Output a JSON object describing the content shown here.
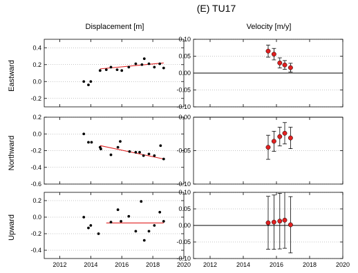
{
  "figure": {
    "title": "(E) TU17",
    "col_titles": [
      "Displacement [m]",
      "Velocity [m/y]"
    ],
    "row_labels": [
      "Eastward",
      "Northward",
      "Upward"
    ]
  },
  "colors": {
    "fit_line": "#e02020",
    "point": "#000000",
    "velocity_fill": "#e02020",
    "zero_line": "#000000",
    "grid": "#888888"
  },
  "chart_data": [
    {
      "type": "scatter",
      "panel": "displacement",
      "component": "Eastward",
      "xlim": [
        2011,
        2020
      ],
      "ylim": [
        -0.3,
        0.5
      ],
      "xticks": [
        2012,
        2014,
        2016,
        2018,
        2020
      ],
      "yticks": [
        -0.2,
        0.0,
        0.2,
        0.4
      ],
      "ytick_labels": [
        "-0.2",
        "0.0",
        "0.2",
        "0.4"
      ],
      "grid": true,
      "points": [
        [
          13.55,
          0.0
        ],
        [
          13.85,
          -0.04
        ],
        [
          14.0,
          0.0
        ],
        [
          14.6,
          0.13
        ],
        [
          15.0,
          0.14
        ],
        [
          15.3,
          0.17
        ],
        [
          15.7,
          0.14
        ],
        [
          16.0,
          0.13
        ],
        [
          16.45,
          0.17
        ],
        [
          16.9,
          0.21
        ],
        [
          17.3,
          0.2
        ],
        [
          17.45,
          0.27
        ],
        [
          17.75,
          0.21
        ],
        [
          18.1,
          0.17
        ],
        [
          18.45,
          0.21
        ],
        [
          18.7,
          0.16
        ]
      ],
      "fit": [
        [
          14.6,
          0.15
        ],
        [
          18.7,
          0.22
        ]
      ]
    },
    {
      "type": "scatter",
      "panel": "velocity",
      "component": "Eastward",
      "xlim": [
        2011,
        2020
      ],
      "ylim": [
        -0.1,
        0.1
      ],
      "xticks": [
        2012,
        2014,
        2016,
        2018,
        2020
      ],
      "yticks": [
        -0.1,
        -0.05,
        0.0,
        0.05,
        0.1
      ],
      "ytick_labels": [
        "-0.10",
        "-0.05",
        "0.00",
        "0.05",
        "0.10"
      ],
      "grid": true,
      "points": [
        [
          15.5,
          0.065,
          0.018
        ],
        [
          15.85,
          0.056,
          0.017
        ],
        [
          16.2,
          0.03,
          0.015
        ],
        [
          16.5,
          0.024,
          0.013
        ],
        [
          16.85,
          0.016,
          0.013
        ]
      ]
    },
    {
      "type": "scatter",
      "panel": "displacement",
      "component": "Northward",
      "xlim": [
        2011,
        2020
      ],
      "ylim": [
        -0.6,
        0.2
      ],
      "xticks": [
        2012,
        2014,
        2016,
        2018,
        2020
      ],
      "yticks": [
        -0.6,
        -0.4,
        -0.2,
        0.0,
        0.2
      ],
      "ytick_labels": [
        "-0.6",
        "-0.4",
        "-0.2",
        "0.0",
        "0.2"
      ],
      "grid": true,
      "points": [
        [
          13.55,
          0.0
        ],
        [
          13.85,
          -0.1
        ],
        [
          14.05,
          -0.1
        ],
        [
          14.6,
          -0.16
        ],
        [
          14.65,
          -0.18
        ],
        [
          15.3,
          -0.25
        ],
        [
          15.75,
          -0.16
        ],
        [
          15.9,
          -0.09
        ],
        [
          16.5,
          -0.21
        ],
        [
          16.9,
          -0.22
        ],
        [
          17.15,
          -0.22
        ],
        [
          17.4,
          -0.26
        ],
        [
          17.75,
          -0.24
        ],
        [
          18.1,
          -0.26
        ],
        [
          18.5,
          -0.14
        ],
        [
          18.7,
          -0.3
        ]
      ],
      "fit": [
        [
          14.6,
          -0.14
        ],
        [
          18.7,
          -0.3
        ]
      ]
    },
    {
      "type": "scatter",
      "panel": "velocity",
      "component": "Northward",
      "xlim": [
        2011,
        2020
      ],
      "ylim": [
        -0.1,
        0.0
      ],
      "xticks": [
        2012,
        2014,
        2016,
        2018,
        2020
      ],
      "yticks": [
        -0.1,
        -0.05,
        0.0
      ],
      "ytick_labels": [
        "-0.10",
        "-0.05",
        "0.00"
      ],
      "grid": true,
      "points": [
        [
          15.5,
          -0.045,
          0.018
        ],
        [
          15.85,
          -0.036,
          0.015
        ],
        [
          16.2,
          -0.029,
          0.014
        ],
        [
          16.5,
          -0.024,
          0.016
        ],
        [
          16.85,
          -0.031,
          0.016
        ]
      ]
    },
    {
      "type": "scatter",
      "panel": "displacement",
      "component": "Upward",
      "xlim": [
        2011,
        2020
      ],
      "ylim": [
        -0.5,
        0.3
      ],
      "xticks": [
        2012,
        2014,
        2016,
        2018,
        2020
      ],
      "yticks": [
        -0.4,
        -0.2,
        0.0,
        0.2
      ],
      "ytick_labels": [
        "-0.4",
        "-0.2",
        "0.0",
        "0.2"
      ],
      "grid": true,
      "points": [
        [
          13.55,
          0.0
        ],
        [
          13.85,
          -0.13
        ],
        [
          14.0,
          -0.1
        ],
        [
          14.5,
          -0.2
        ],
        [
          15.3,
          -0.06
        ],
        [
          15.75,
          0.09
        ],
        [
          15.95,
          -0.05
        ],
        [
          16.45,
          0.01
        ],
        [
          16.9,
          -0.17
        ],
        [
          17.25,
          0.19
        ],
        [
          17.45,
          -0.28
        ],
        [
          17.75,
          -0.17
        ],
        [
          18.1,
          -0.1
        ],
        [
          18.45,
          0.06
        ],
        [
          18.7,
          -0.05
        ]
      ],
      "fit": [
        [
          15.0,
          -0.07
        ],
        [
          18.7,
          -0.07
        ]
      ]
    },
    {
      "type": "scatter",
      "panel": "velocity",
      "component": "Upward",
      "xlim": [
        2011,
        2020
      ],
      "ylim": [
        -0.1,
        0.1
      ],
      "xticks": [
        2012,
        2014,
        2016,
        2018,
        2020
      ],
      "xtick_labels": [
        "2012",
        "2014",
        "2016",
        "2018",
        "2020"
      ],
      "yticks": [
        -0.1,
        -0.05,
        0.0,
        0.05,
        0.1
      ],
      "ytick_labels": [
        "-0.10",
        "-0.05",
        "0.00",
        "0.05",
        "0.10"
      ],
      "grid": true,
      "points": [
        [
          15.5,
          0.008,
          0.08
        ],
        [
          15.85,
          0.01,
          0.082
        ],
        [
          16.2,
          0.013,
          0.084
        ],
        [
          16.5,
          0.016,
          0.085
        ],
        [
          16.85,
          0.002,
          0.085
        ]
      ]
    }
  ]
}
